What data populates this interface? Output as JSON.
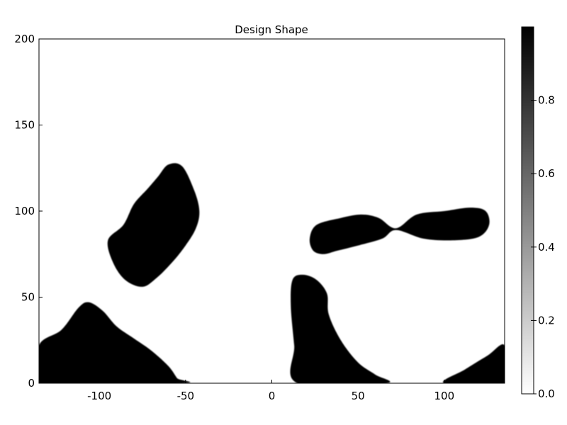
{
  "chart_data": {
    "type": "heatmap",
    "title": "Design Shape",
    "xlabel": "",
    "ylabel": "",
    "xlim": [
      -135,
      135
    ],
    "ylim": [
      0,
      200
    ],
    "x_ticks": [
      -100,
      -50,
      0,
      50,
      100
    ],
    "x_tick_labels": [
      "-100",
      "-50",
      "0",
      "50",
      "100"
    ],
    "y_ticks": [
      0,
      50,
      100,
      150,
      200
    ],
    "y_tick_labels": [
      "0",
      "50",
      "100",
      "150",
      "200"
    ],
    "grid": false,
    "colormap": "grayscale (0.0 white to 1.0 black)",
    "colorbar": {
      "range": [
        0.0,
        1.0
      ],
      "ticks": [
        0.0,
        0.2,
        0.4,
        0.6,
        0.8
      ],
      "tick_labels": [
        "0.0",
        "0.2",
        "0.4",
        "0.6",
        "0.8"
      ],
      "low_color": "#ffffff",
      "high_color": "#000000"
    },
    "regions": [
      {
        "name": "ellipse-blob",
        "value": 1.0,
        "outline": [
          [
            -86,
            92
          ],
          [
            -80,
            104
          ],
          [
            -72,
            113
          ],
          [
            -66,
            120
          ],
          [
            -60,
            127
          ],
          [
            -52,
            126
          ],
          [
            -45,
            112
          ],
          [
            -42,
            100
          ],
          [
            -44,
            90
          ],
          [
            -50,
            80
          ],
          [
            -58,
            70
          ],
          [
            -67,
            61
          ],
          [
            -75,
            56
          ],
          [
            -85,
            60
          ],
          [
            -92,
            70
          ],
          [
            -95,
            83
          ]
        ]
      },
      {
        "name": "left-lower-blob",
        "value": 1.0,
        "outline": [
          [
            -135,
            0
          ],
          [
            -135,
            22
          ],
          [
            -122,
            31
          ],
          [
            -112,
            44
          ],
          [
            -106,
            47
          ],
          [
            -98,
            42
          ],
          [
            -90,
            33
          ],
          [
            -80,
            26
          ],
          [
            -70,
            19
          ],
          [
            -60,
            10
          ],
          [
            -55,
            3
          ],
          [
            -53,
            0
          ]
        ]
      },
      {
        "name": "center-lower-blob",
        "value": 1.0,
        "outline": [
          [
            15,
            0
          ],
          [
            13,
            22
          ],
          [
            11,
            45
          ],
          [
            12,
            60
          ],
          [
            18,
            63
          ],
          [
            26,
            60
          ],
          [
            32,
            52
          ],
          [
            33,
            40
          ],
          [
            40,
            25
          ],
          [
            50,
            12
          ],
          [
            60,
            5
          ],
          [
            66,
            0
          ]
        ]
      },
      {
        "name": "right-double-lobe",
        "value": 1.0,
        "outline": [
          [
            22,
            84
          ],
          [
            26,
            92
          ],
          [
            40,
            96
          ],
          [
            52,
            98
          ],
          [
            62,
            96
          ],
          [
            72,
            90
          ],
          [
            84,
            98
          ],
          [
            100,
            100
          ],
          [
            115,
            102
          ],
          [
            124,
            100
          ],
          [
            126,
            92
          ],
          [
            120,
            85
          ],
          [
            105,
            83
          ],
          [
            88,
            84
          ],
          [
            72,
            89
          ],
          [
            64,
            84
          ],
          [
            50,
            80
          ],
          [
            38,
            77
          ],
          [
            30,
            75
          ],
          [
            24,
            77
          ]
        ]
      },
      {
        "name": "right-corner-blob",
        "value": 1.0,
        "outline": [
          [
            100,
            0
          ],
          [
            112,
            8
          ],
          [
            125,
            16
          ],
          [
            135,
            22
          ],
          [
            135,
            0
          ]
        ]
      }
    ]
  }
}
